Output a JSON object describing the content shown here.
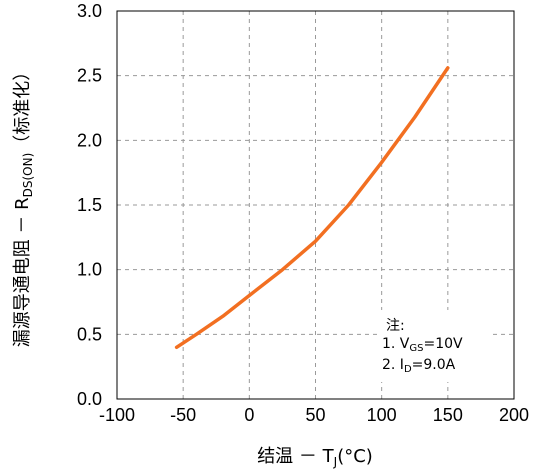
{
  "chart_data": {
    "type": "line",
    "x_ticks": [
      -100,
      -50,
      0,
      50,
      100,
      150,
      200
    ],
    "y_ticks": [
      "0.0",
      "0.5",
      "1.0",
      "1.5",
      "2.0",
      "2.5",
      "3.0"
    ],
    "xlim": [
      -100,
      200
    ],
    "ylim": [
      0,
      3.0
    ],
    "grid": true,
    "xlabel": {
      "prefix": "结温 － T",
      "sub": "J",
      "suffix": "(°C)"
    },
    "ylabel": {
      "prefix": "漏源导通电阻 － R",
      "sub": "DS(ON)",
      "suffix": "（标准化）"
    },
    "series": [
      {
        "color": "#f26f21",
        "x": [
          -55,
          -40,
          -20,
          0,
          25,
          50,
          75,
          100,
          125,
          150
        ],
        "y": [
          0.4,
          0.5,
          0.64,
          0.8,
          1.0,
          1.22,
          1.5,
          1.83,
          2.18,
          2.56
        ]
      }
    ],
    "note": {
      "title": "注:",
      "line1": {
        "prefix": "1. V",
        "sub": "GS",
        "suffix": "=10V"
      },
      "line2": {
        "prefix": "2. I",
        "sub": "D",
        "suffix": "=9.0A"
      }
    }
  }
}
